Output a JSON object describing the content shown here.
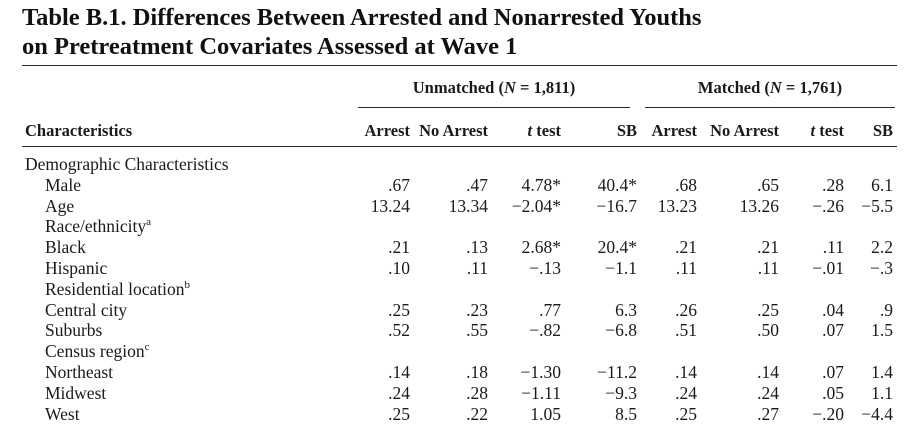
{
  "table": {
    "title_line1": "Table B.1. Differences Between Arrested and Nonarrested Youths",
    "title_line2": "on Pretreatment Covariates Assessed at Wave 1",
    "groups": {
      "unmatched": {
        "prefix": "Unmatched (",
        "n_symbol": "N",
        "suffix": " = 1,811)"
      },
      "matched": {
        "prefix": "Matched (",
        "n_symbol": "N",
        "suffix": " = 1,761)"
      }
    },
    "columns": {
      "characteristics": "Characteristics",
      "arrest": "Arrest",
      "no_arrest": "No Arrest",
      "t_test": "t test",
      "sb": "SB"
    },
    "rows": [
      {
        "label": "Demographic Characteristics",
        "indent": 0,
        "values": []
      },
      {
        "label": "Male",
        "indent": 1,
        "values": [
          ".67",
          ".47",
          "4.78*",
          "40.4*",
          ".68",
          ".65",
          ".28",
          "6.1"
        ]
      },
      {
        "label": "Age",
        "indent": 1,
        "values": [
          "13.24",
          "13.34",
          "−2.04*",
          "−16.7",
          "13.23",
          "13.26",
          "−.26",
          "−5.5"
        ]
      },
      {
        "label": "Race/ethnicity",
        "sup": "a",
        "indent": 1,
        "values": []
      },
      {
        "label": "Black",
        "indent": 1,
        "values": [
          ".21",
          ".13",
          "2.68*",
          "20.4*",
          ".21",
          ".21",
          ".11",
          "2.2"
        ]
      },
      {
        "label": "Hispanic",
        "indent": 1,
        "values": [
          ".10",
          ".11",
          "−.13",
          "−1.1",
          ".11",
          ".11",
          "−.01",
          "−.3"
        ]
      },
      {
        "label": "Residential location",
        "sup": "b",
        "indent": 1,
        "values": []
      },
      {
        "label": "Central city",
        "indent": 1,
        "values": [
          ".25",
          ".23",
          ".77",
          "6.3",
          ".26",
          ".25",
          ".04",
          ".9"
        ]
      },
      {
        "label": "Suburbs",
        "indent": 1,
        "values": [
          ".52",
          ".55",
          "−.82",
          "−6.8",
          ".51",
          ".50",
          ".07",
          "1.5"
        ]
      },
      {
        "label": "Census region",
        "sup": "c",
        "indent": 1,
        "values": []
      },
      {
        "label": "Northeast",
        "indent": 1,
        "values": [
          ".14",
          ".18",
          "−1.30",
          "−11.2",
          ".14",
          ".14",
          ".07",
          "1.4"
        ]
      },
      {
        "label": "Midwest",
        "indent": 1,
        "values": [
          ".24",
          ".28",
          "−1.11",
          "−9.3",
          ".24",
          ".24",
          ".05",
          "1.1"
        ]
      },
      {
        "label": "West",
        "indent": 1,
        "values": [
          ".25",
          ".22",
          "1.05",
          "8.5",
          ".25",
          ".27",
          "−.20",
          "−4.4"
        ]
      }
    ]
  }
}
